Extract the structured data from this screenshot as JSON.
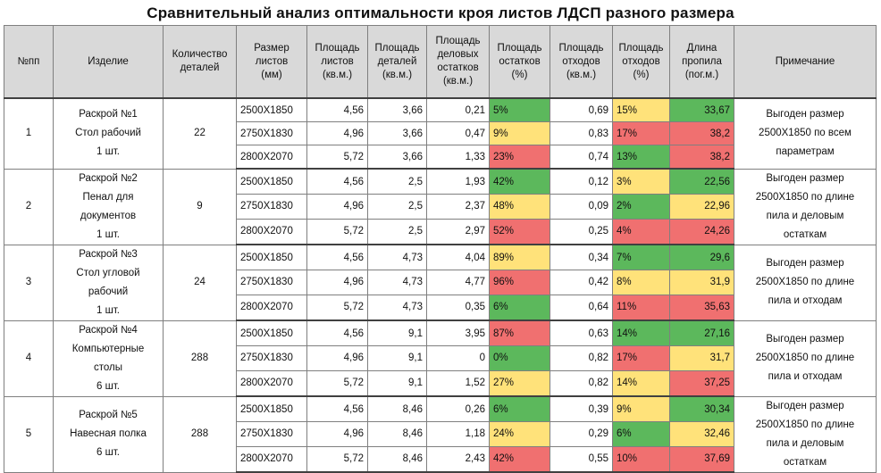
{
  "title": "Сравнительный анализ оптимальности кроя листов ЛДСП разного размера",
  "headers": {
    "n": "№пп",
    "product": "Изделие",
    "parts": [
      "Количество",
      "деталей"
    ],
    "sheet_size": [
      "Размер",
      "листов",
      "(мм)"
    ],
    "sheet_area": [
      "Площадь",
      "листов",
      "(кв.м.)"
    ],
    "parts_area": [
      "Площадь",
      "деталей",
      "(кв.м.)"
    ],
    "remnants_area": [
      "Площадь",
      "деловых",
      "остатков",
      "(кв.м.)"
    ],
    "remnants_pct": [
      "Площадь",
      "остатков",
      "(%)"
    ],
    "waste_area": [
      "Площадь",
      "отходов",
      "(кв.м.)"
    ],
    "waste_pct": [
      "Площадь",
      "отходов",
      "(%)"
    ],
    "cut_length": [
      "Длина",
      "пропила",
      "(пог.м.)"
    ],
    "note": "Примечание"
  },
  "colors": {
    "green": "#5cb85c",
    "yellow": "#ffe27a",
    "red": "#f07070"
  },
  "groups": [
    {
      "n": "1",
      "product": [
        "Раскрой №1",
        "Стол рабочий",
        "1 шт."
      ],
      "parts": "22",
      "note": [
        "Выгоден размер",
        "2500Х1850 по всем",
        "параметрам"
      ],
      "rows": [
        {
          "size": "2500Х1850",
          "sheet_area": "4,56",
          "parts_area": "3,66",
          "remnants": "0,21",
          "remnants_pct": "5%",
          "remnants_color": "green",
          "waste": "0,69",
          "waste_pct": "15%",
          "waste_color": "yellow",
          "cut": "33,67",
          "cut_color": "green"
        },
        {
          "size": "2750Х1830",
          "sheet_area": "4,96",
          "parts_area": "3,66",
          "remnants": "0,47",
          "remnants_pct": "9%",
          "remnants_color": "yellow",
          "waste": "0,83",
          "waste_pct": "17%",
          "waste_color": "red",
          "cut": "38,2",
          "cut_color": "red"
        },
        {
          "size": "2800Х2070",
          "sheet_area": "5,72",
          "parts_area": "3,66",
          "remnants": "1,33",
          "remnants_pct": "23%",
          "remnants_color": "red",
          "waste": "0,74",
          "waste_pct": "13%",
          "waste_color": "green",
          "cut": "38,2",
          "cut_color": "red"
        }
      ]
    },
    {
      "n": "2",
      "product": [
        "Раскрой №2",
        "Пенал для",
        "документов",
        "1 шт."
      ],
      "parts": "9",
      "note": [
        "Выгоден размер",
        "2500Х1850 по длине",
        "пила и деловым",
        "остаткам"
      ],
      "rows": [
        {
          "size": "2500Х1850",
          "sheet_area": "4,56",
          "parts_area": "2,5",
          "remnants": "1,93",
          "remnants_pct": "42%",
          "remnants_color": "green",
          "waste": "0,12",
          "waste_pct": "3%",
          "waste_color": "yellow",
          "cut": "22,56",
          "cut_color": "green"
        },
        {
          "size": "2750Х1830",
          "sheet_area": "4,96",
          "parts_area": "2,5",
          "remnants": "2,37",
          "remnants_pct": "48%",
          "remnants_color": "yellow",
          "waste": "0,09",
          "waste_pct": "2%",
          "waste_color": "green",
          "cut": "22,96",
          "cut_color": "yellow"
        },
        {
          "size": "2800Х2070",
          "sheet_area": "5,72",
          "parts_area": "2,5",
          "remnants": "2,97",
          "remnants_pct": "52%",
          "remnants_color": "red",
          "waste": "0,25",
          "waste_pct": "4%",
          "waste_color": "red",
          "cut": "24,26",
          "cut_color": "red"
        }
      ]
    },
    {
      "n": "3",
      "product": [
        "Раскрой №3",
        "Стол угловой",
        "рабочий",
        "1 шт."
      ],
      "parts": "24",
      "note": [
        "Выгоден размер",
        "2500Х1850 по длине",
        "пила и  отходам"
      ],
      "rows": [
        {
          "size": "2500Х1850",
          "sheet_area": "4,56",
          "parts_area": "4,73",
          "remnants": "4,04",
          "remnants_pct": "89%",
          "remnants_color": "yellow",
          "waste": "0,34",
          "waste_pct": "7%",
          "waste_color": "green",
          "cut": "29,6",
          "cut_color": "green"
        },
        {
          "size": "2750Х1830",
          "sheet_area": "4,96",
          "parts_area": "4,73",
          "remnants": "4,77",
          "remnants_pct": "96%",
          "remnants_color": "red",
          "waste": "0,42",
          "waste_pct": "8%",
          "waste_color": "yellow",
          "cut": "31,9",
          "cut_color": "yellow"
        },
        {
          "size": "2800Х2070",
          "sheet_area": "5,72",
          "parts_area": "4,73",
          "remnants": "0,35",
          "remnants_pct": "6%",
          "remnants_color": "green",
          "waste": "0,64",
          "waste_pct": "11%",
          "waste_color": "red",
          "cut": "35,63",
          "cut_color": "red"
        }
      ]
    },
    {
      "n": "4",
      "product": [
        "Раскрой №4",
        "Компьютерные",
        "столы",
        "6 шт."
      ],
      "parts": "288",
      "note": [
        "Выгоден размер",
        "2500Х1850 по длине",
        "пила и  отходам"
      ],
      "rows": [
        {
          "size": "2500Х1850",
          "sheet_area": "4,56",
          "parts_area": "9,1",
          "remnants": "3,95",
          "remnants_pct": "87%",
          "remnants_color": "red",
          "waste": "0,63",
          "waste_pct": "14%",
          "waste_color": "green",
          "cut": "27,16",
          "cut_color": "green"
        },
        {
          "size": "2750Х1830",
          "sheet_area": "4,96",
          "parts_area": "9,1",
          "remnants": "0",
          "remnants_pct": "0%",
          "remnants_color": "green",
          "waste": "0,82",
          "waste_pct": "17%",
          "waste_color": "red",
          "cut": "31,7",
          "cut_color": "yellow"
        },
        {
          "size": "2800Х2070",
          "sheet_area": "5,72",
          "parts_area": "9,1",
          "remnants": "1,52",
          "remnants_pct": "27%",
          "remnants_color": "yellow",
          "waste": "0,82",
          "waste_pct": "14%",
          "waste_color": "yellow",
          "cut": "37,25",
          "cut_color": "red"
        }
      ]
    },
    {
      "n": "5",
      "product": [
        "Раскрой №5",
        "Навесная полка",
        "6 шт."
      ],
      "parts": "288",
      "note": [
        "Выгоден размер",
        "2500Х1850 по длине",
        "пила и деловым",
        "остаткам"
      ],
      "rows": [
        {
          "size": "2500Х1850",
          "sheet_area": "4,56",
          "parts_area": "8,46",
          "remnants": "0,26",
          "remnants_pct": "6%",
          "remnants_color": "green",
          "waste": "0,39",
          "waste_pct": "9%",
          "waste_color": "yellow",
          "cut": "30,34",
          "cut_color": "green"
        },
        {
          "size": "2750Х1830",
          "sheet_area": "4,96",
          "parts_area": "8,46",
          "remnants": "1,18",
          "remnants_pct": "24%",
          "remnants_color": "yellow",
          "waste": "0,29",
          "waste_pct": "6%",
          "waste_color": "green",
          "cut": "32,46",
          "cut_color": "yellow"
        },
        {
          "size": "2800Х2070",
          "sheet_area": "5,72",
          "parts_area": "8,46",
          "remnants": "2,43",
          "remnants_pct": "42%",
          "remnants_color": "red",
          "waste": "0,55",
          "waste_pct": "10%",
          "waste_color": "red",
          "cut": "37,69",
          "cut_color": "red"
        }
      ]
    }
  ]
}
